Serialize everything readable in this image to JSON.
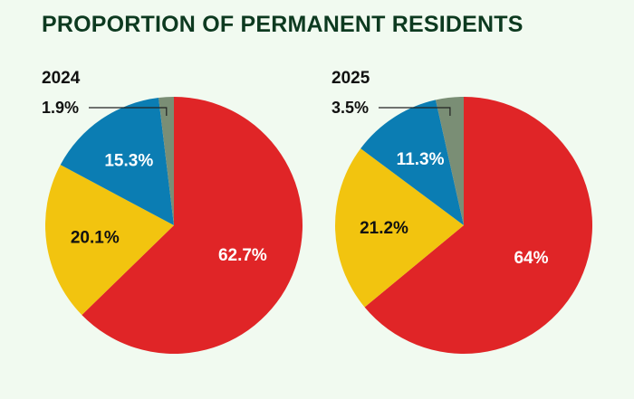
{
  "title": "PROPORTION OF PERMANENT RESIDENTS",
  "chart_data": [
    {
      "type": "pie",
      "year_label": "2024",
      "start": "12 o'clock",
      "direction": "clockwise",
      "slices": [
        {
          "value": 62.7,
          "label": "62.7%",
          "color": "#e02527",
          "label_color": "#ffffff"
        },
        {
          "value": 20.1,
          "label": "20.1%",
          "color": "#f2c40f",
          "label_color": "#111111"
        },
        {
          "value": 15.3,
          "label": "15.3%",
          "color": "#0b7db3",
          "label_color": "#ffffff"
        },
        {
          "value": 1.9,
          "label": "1.9%",
          "color": "#7a8e75",
          "label_color": "#111111",
          "callout": true
        }
      ]
    },
    {
      "type": "pie",
      "year_label": "2025",
      "start": "12 o'clock",
      "direction": "clockwise",
      "slices": [
        {
          "value": 64,
          "label": "64%",
          "color": "#e02527",
          "label_color": "#ffffff"
        },
        {
          "value": 21.2,
          "label": "21.2%",
          "color": "#f2c40f",
          "label_color": "#111111"
        },
        {
          "value": 11.3,
          "label": "11.3%",
          "color": "#0b7db3",
          "label_color": "#ffffff"
        },
        {
          "value": 3.5,
          "label": "3.5%",
          "color": "#7a8e75",
          "label_color": "#111111",
          "callout": true
        }
      ]
    }
  ]
}
